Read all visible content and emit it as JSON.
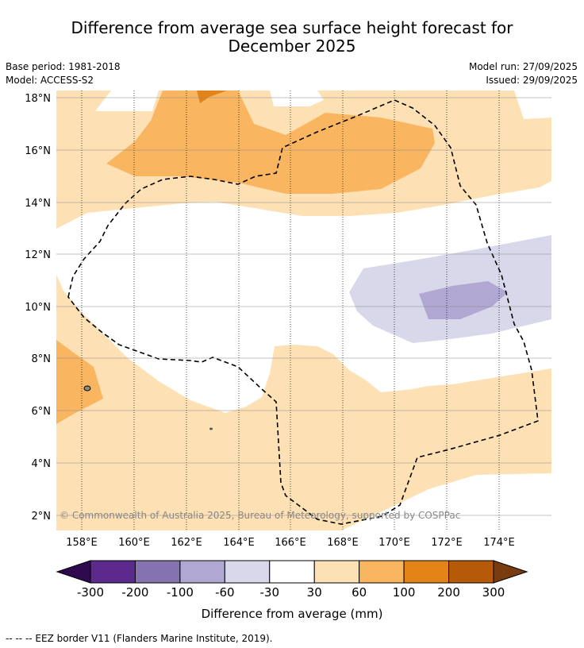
{
  "title": {
    "line1": "Difference from average sea surface height forecast for",
    "line2": "December 2025"
  },
  "info_left": {
    "base_period": "Base period: 1981-2018",
    "model": "Model: ACCESS-S2"
  },
  "info_right": {
    "model_run": "Model run: 27/09/2025",
    "issued": "Issued: 29/09/2025"
  },
  "map": {
    "lat_labels": [
      "18°N",
      "16°N",
      "14°N",
      "12°N",
      "10°N",
      "8°N",
      "6°N",
      "4°N",
      "2°N"
    ],
    "lon_labels": [
      "158°E",
      "160°E",
      "162°E",
      "164°E",
      "166°E",
      "168°E",
      "170°E",
      "172°E",
      "174°E"
    ],
    "copyright": "© Commonwealth of Australia 2025, Bureau of Meteorology, supported by COSPPac"
  },
  "colorbar": {
    "tick_labels": [
      "-300",
      "-200",
      "-100",
      "-60",
      "-30",
      "30",
      "60",
      "100",
      "200",
      "300"
    ],
    "colors": [
      "#5c2a8c",
      "#8573b0",
      "#b0a8d2",
      "#d8d8ea",
      "#ffffff",
      "#fde0b4",
      "#f9b560",
      "#e48317",
      "#b65909"
    ],
    "extend_low_color": "#2e0a4e",
    "extend_high_color": "#7a3b0e",
    "label": "Difference from average (mm)"
  },
  "footer": {
    "legend_text": "--  --  -- EEZ border V11 (Flanders Marine Institute, 2019)."
  }
}
